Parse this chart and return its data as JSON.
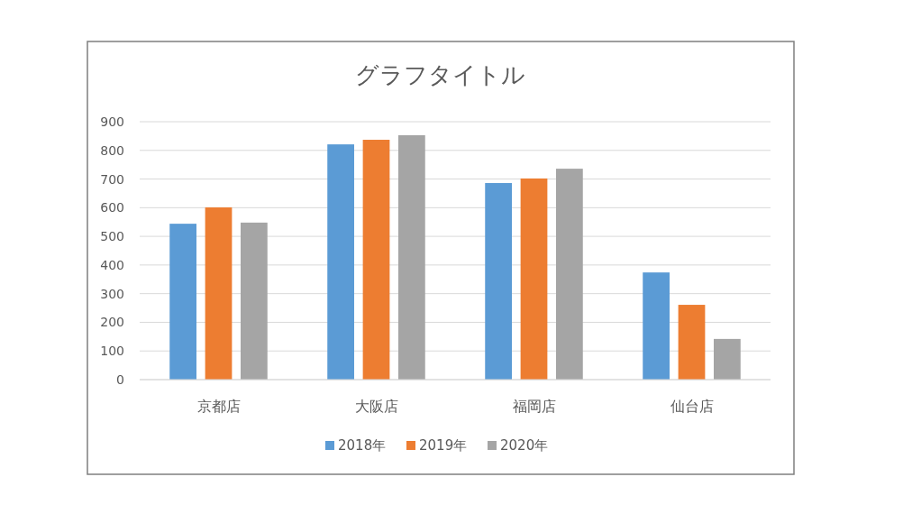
{
  "chart_data": {
    "type": "bar",
    "title": "グラフタイトル",
    "categories": [
      "京都店",
      "大阪店",
      "福岡店",
      "仙台店"
    ],
    "series": [
      {
        "name": "2018年",
        "color": "#5b9bd5",
        "values": [
          544,
          821,
          686,
          374
        ]
      },
      {
        "name": "2019年",
        "color": "#ed7d31",
        "values": [
          601,
          837,
          702,
          261
        ]
      },
      {
        "name": "2020年",
        "color": "#a5a5a5",
        "values": [
          548,
          853,
          736,
          142
        ]
      }
    ],
    "ylim": [
      0,
      900
    ],
    "yticks": [
      0,
      100,
      200,
      300,
      400,
      500,
      600,
      700,
      800,
      900
    ],
    "grid": "y",
    "legend": "bottom"
  }
}
